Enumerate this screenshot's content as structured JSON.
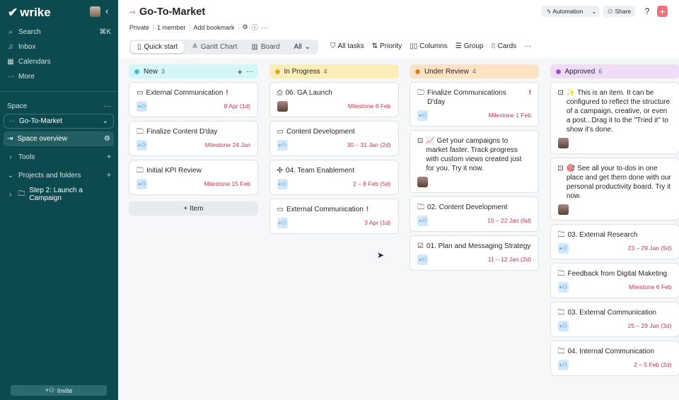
{
  "sidebar": {
    "logo": "wrike",
    "nav": [
      {
        "icon": "search-icon",
        "glyph": "⌕",
        "label": "Search",
        "shortcut": "⌘K"
      },
      {
        "icon": "bell-icon",
        "glyph": "♫",
        "label": "Inbox"
      },
      {
        "icon": "calendar-icon",
        "glyph": "▦",
        "label": "Calendars"
      },
      {
        "icon": "more-icon",
        "glyph": "···",
        "label": "More"
      }
    ],
    "space_label": "Space",
    "space_name": "Go-To-Market",
    "space_overview": "Space overview",
    "tools": "Tools",
    "projects": "Projects and folders",
    "project_item": "Step 2: Launch a Campaign",
    "invite": "Invite"
  },
  "header": {
    "title": "Go-To-Market",
    "meta": [
      "Private",
      "1 member",
      "Add bookmark"
    ],
    "automation": "Automation",
    "share": "Share"
  },
  "toolbar": {
    "tabs": [
      "Quick start",
      "Gantt Chart",
      "Board"
    ],
    "all": "All",
    "tools": [
      "All tasks",
      "Priority",
      "Columns",
      "Group",
      "Cards"
    ]
  },
  "board": {
    "add_item": "+ Item",
    "columns": [
      {
        "name": "New",
        "count": "3",
        "color": "#d3f6f6",
        "dot": "#3fbfcc",
        "cards": [
          {
            "icon": "▭",
            "title": "External Communication",
            "urgent": true,
            "date": "8 Apr (1d)"
          },
          {
            "icon": "🗀",
            "title": "Finalize Content D'day",
            "date": "Milestone 24 Jan"
          },
          {
            "icon": "🗀",
            "title": "Initial KPI Review",
            "date": "Milestone 15 Feb"
          }
        ]
      },
      {
        "name": "In Progress",
        "count": "4",
        "color": "#fcedb6",
        "dot": "#e2aa12",
        "cards": [
          {
            "icon": "⎙",
            "title": "06. GA Launch",
            "date": "Milestone 8 Feb",
            "avatar": true
          },
          {
            "icon": "▭",
            "title": "Content Development",
            "date": "30 – 31 Jan (2d)"
          },
          {
            "icon": "✣",
            "title": "04. Team Enablement",
            "date": "2 – 8 Feb (5d)"
          },
          {
            "icon": "▭",
            "title": "External Communication",
            "urgent": true,
            "date": "3 Apr (1d)"
          }
        ]
      },
      {
        "name": "Under Review",
        "count": "4",
        "color": "#fde2c4",
        "dot": "#e57c22",
        "cards": [
          {
            "icon": "🗀",
            "title": "Finalize Communications D'day",
            "urgent": true,
            "date": "Milestone 1 Feb"
          },
          {
            "icon": "⊡",
            "title": "📈 Get your campaigns to market faster. Track progress with custom views created just for you. Try it now.",
            "avatar": true
          },
          {
            "icon": "🗀",
            "title": "02. Content Development",
            "date": "15 – 22 Jan (6d)"
          },
          {
            "icon": "☑",
            "title": "01. Plan and Messaging Strategy",
            "date": "11 – 12 Jan (2d)"
          }
        ]
      },
      {
        "name": "Approved",
        "count": "6",
        "color": "#f1dcf8",
        "dot": "#9b4fc7",
        "cards": [
          {
            "icon": "⊡",
            "title": "✨ This is an item. It can be configured to reflect the structure of a campaign, creative, or even a post...Drag it to the \"Tried it\" to show it's done.",
            "avatar": true
          },
          {
            "icon": "⊡",
            "title": "🎯 See all your to-dos in one place and get them done with our personal productivity board. Try it now.",
            "avatar": true
          },
          {
            "icon": "🗀",
            "title": "03. External Research",
            "date": "23 – 29 Jan (5d)"
          },
          {
            "icon": "🗀",
            "title": "Feedback from Digital Maketing",
            "date": "Milestone 6 Feb"
          },
          {
            "icon": "🗀",
            "title": "03. External Communication",
            "date": "25 – 29 Jan (3d)"
          },
          {
            "icon": "🗀",
            "title": "04. Internal Communication",
            "date": "2 – 5 Feb (2d)"
          }
        ]
      }
    ]
  }
}
